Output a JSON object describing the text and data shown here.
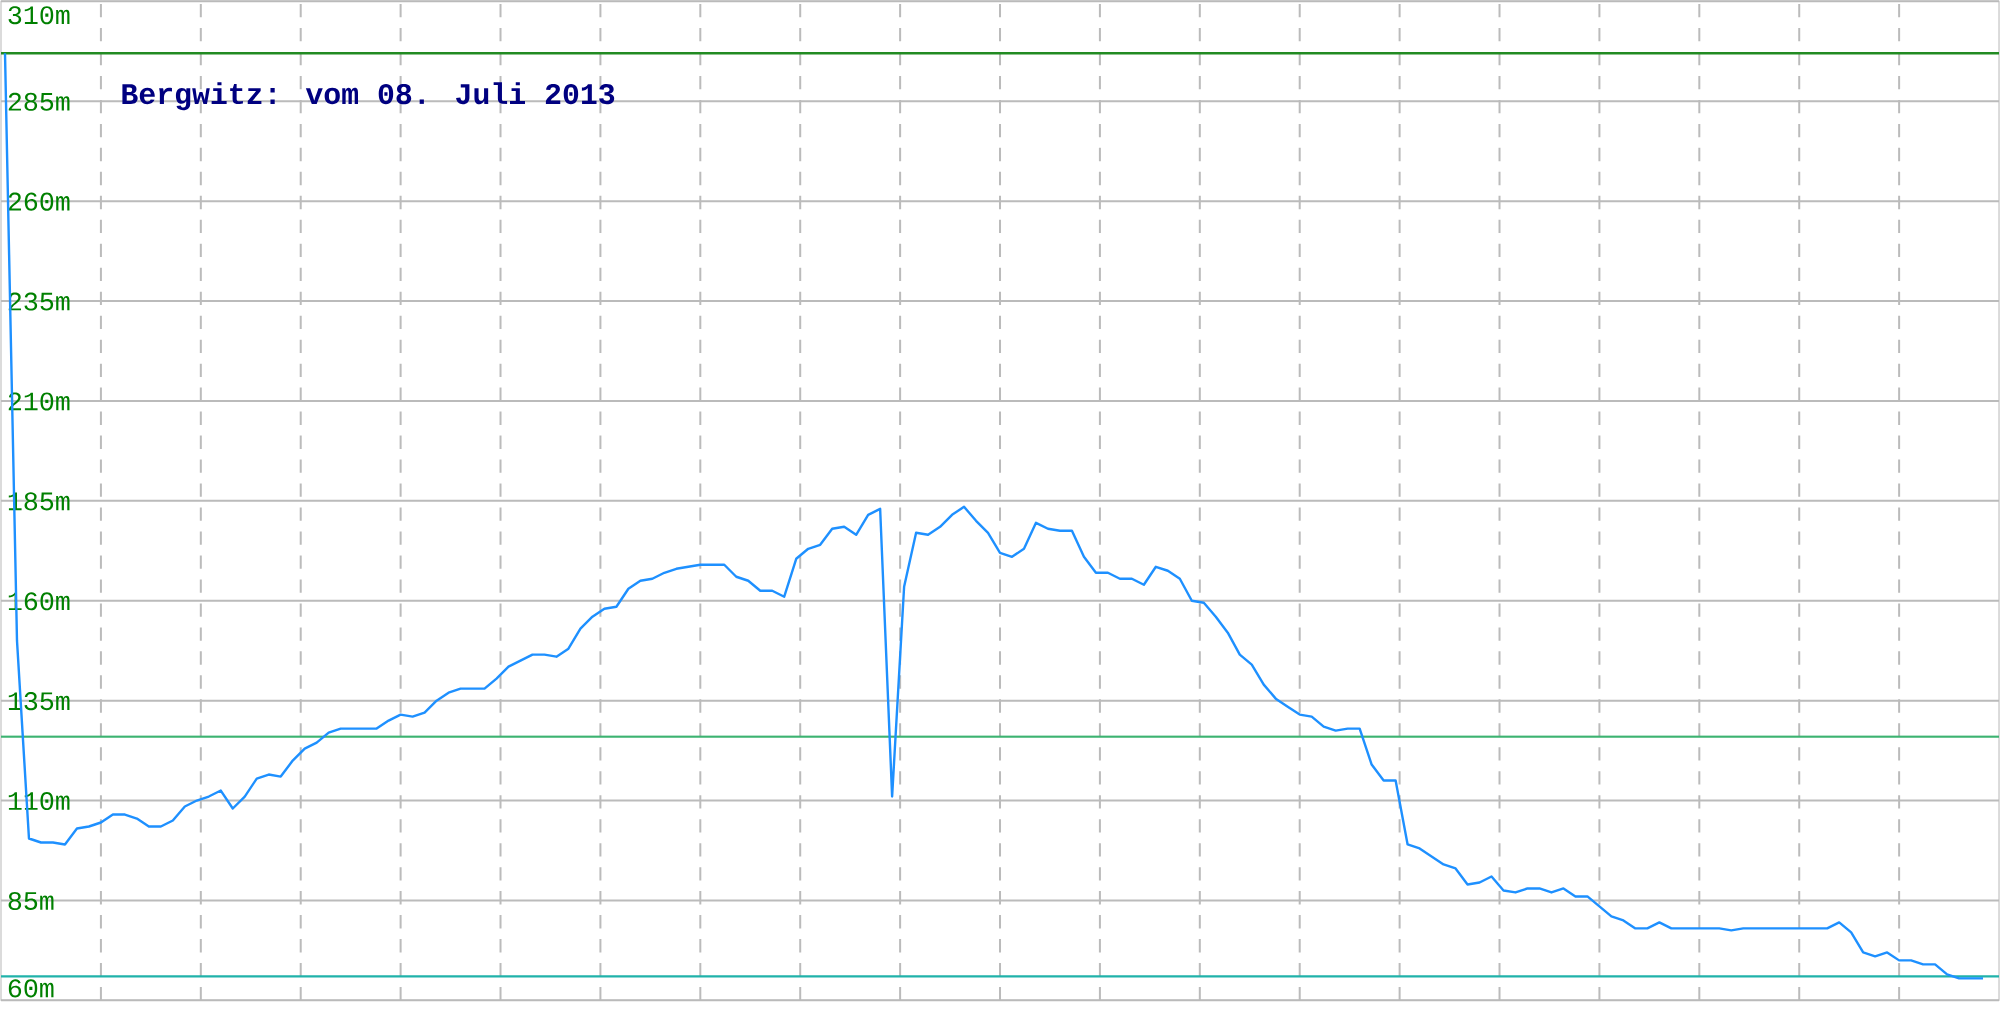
{
  "chart_data": {
    "type": "line",
    "title": "Bergwitz: vom 08. Juli 2013",
    "categories": [
      null,
      null,
      null,
      null,
      null,
      null,
      null,
      null,
      null,
      null,
      null,
      null,
      null,
      null,
      null,
      null,
      null,
      null,
      null,
      null,
      null,
      null,
      null,
      null,
      null,
      null,
      null,
      null,
      null,
      null,
      null,
      null,
      null,
      null,
      null,
      null,
      null,
      null,
      null,
      null,
      null,
      null,
      null,
      null,
      null,
      null,
      null,
      null,
      null,
      null,
      null,
      null,
      null,
      null,
      null,
      null,
      null,
      null,
      null,
      null,
      null,
      null,
      null,
      null,
      null,
      null,
      null,
      null,
      null,
      null,
      null,
      null,
      null,
      null,
      null,
      null,
      null,
      null,
      null,
      null,
      null,
      null,
      null,
      null,
      null,
      null,
      null,
      null,
      null,
      null,
      null,
      null,
      null,
      null,
      null,
      null,
      null,
      null,
      null,
      null,
      null,
      null,
      null,
      null,
      null,
      null,
      null,
      null,
      null,
      null,
      null,
      null,
      null,
      null,
      null,
      null,
      null,
      null,
      null,
      null,
      null,
      null,
      null,
      null,
      null,
      null,
      null,
      null,
      null,
      null,
      null,
      null,
      null,
      null,
      null,
      null,
      null,
      null,
      null,
      null,
      null,
      null,
      null,
      null,
      null,
      null,
      null,
      null,
      null,
      null,
      null,
      null,
      null,
      null,
      null,
      null,
      null,
      null,
      null,
      null,
      null,
      null,
      null,
      null,
      null,
      null
    ],
    "values": [
      297,
      150,
      100.5,
      99.5,
      99.5,
      99,
      103,
      103.5,
      104.5,
      106.5,
      106.5,
      105.5,
      103.5,
      103.5,
      105,
      108.5,
      110,
      111,
      112.5,
      108,
      111,
      115.5,
      116.5,
      116,
      120,
      123,
      124.5,
      127,
      128,
      128,
      128,
      128,
      130,
      131.5,
      131,
      132,
      135,
      137,
      138,
      138,
      138,
      140.5,
      143.5,
      145,
      146.5,
      146.5,
      146,
      148,
      153,
      156,
      158,
      158.5,
      163,
      165,
      165.5,
      167,
      168,
      168.5,
      169,
      169,
      169,
      166,
      165,
      162.5,
      162.5,
      161,
      170.5,
      173,
      174,
      178,
      178.5,
      176.5,
      181.5,
      183,
      111,
      163.5,
      177,
      176.5,
      178.5,
      181.5,
      183.5,
      180,
      177,
      172,
      171,
      173,
      179.5,
      178,
      177.5,
      177.5,
      171,
      167,
      167,
      165.5,
      165.5,
      164,
      168.5,
      167.5,
      165.5,
      160,
      159.5,
      156,
      152,
      146.5,
      144,
      139,
      135.5,
      133.5,
      131.5,
      131,
      128.5,
      127.5,
      128,
      128,
      119,
      115,
      115,
      99,
      98,
      96,
      94,
      93,
      89,
      89.5,
      91,
      87.5,
      87,
      88,
      88,
      87,
      88,
      86,
      86,
      83.5,
      81,
      80,
      78,
      78,
      79.5,
      78,
      78,
      78,
      78,
      78,
      77.5,
      78,
      78,
      78,
      78,
      78,
      78,
      78,
      78,
      79.5,
      77,
      72,
      71,
      72,
      70,
      70,
      69,
      69,
      66.5,
      65.5,
      65.5,
      65.5
    ],
    "color": "#1e90ff",
    "ylim": [
      60,
      310
    ],
    "yticks": [
      {
        "value": 60,
        "label": "60m"
      },
      {
        "value": 85,
        "label": "85m"
      },
      {
        "value": 110,
        "label": "110m"
      },
      {
        "value": 135,
        "label": "135m"
      },
      {
        "value": 160,
        "label": "160m"
      },
      {
        "value": 185,
        "label": "185m"
      },
      {
        "value": 210,
        "label": "210m"
      },
      {
        "value": 235,
        "label": "235m"
      },
      {
        "value": 260,
        "label": "260m"
      },
      {
        "value": 285,
        "label": "285m"
      },
      {
        "value": 310,
        "label": "310m"
      }
    ],
    "grid": true,
    "tick_labels": "y",
    "ref_lines": [
      {
        "axis": "y",
        "value": 297,
        "color": "#228b22"
      },
      {
        "axis": "y",
        "value": 126,
        "color": "#3cb371"
      },
      {
        "axis": "y",
        "value": 66,
        "color": "#20b2aa"
      }
    ]
  }
}
